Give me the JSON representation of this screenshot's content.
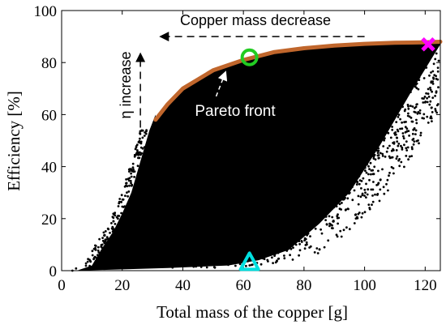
{
  "chart_data": {
    "type": "scatter",
    "title": "",
    "xlabel": "Total mass of the copper [g]",
    "ylabel": "Efficiency [%]",
    "xlim": [
      0,
      125
    ],
    "ylim": [
      0,
      100
    ],
    "xticks": [
      0,
      20,
      40,
      60,
      80,
      100,
      120
    ],
    "yticks": [
      0,
      20,
      40,
      60,
      80,
      100
    ],
    "grid": false,
    "point_color": "#000000",
    "cloud_left_boundary": [
      [
        5,
        0
      ],
      [
        10,
        2
      ],
      [
        13,
        8
      ],
      [
        17,
        15
      ],
      [
        20,
        22
      ],
      [
        23,
        30
      ],
      [
        26,
        42
      ],
      [
        29,
        54
      ],
      [
        31,
        60
      ]
    ],
    "cloud_right_boundary": [
      [
        35,
        1
      ],
      [
        55,
        2
      ],
      [
        65,
        4
      ],
      [
        75,
        8
      ],
      [
        85,
        18
      ],
      [
        95,
        30
      ],
      [
        105,
        48
      ],
      [
        115,
        68
      ],
      [
        125,
        87
      ]
    ],
    "pareto_front": {
      "label": "Pareto front",
      "color": "#c0662c",
      "points": [
        [
          31,
          58
        ],
        [
          35,
          64
        ],
        [
          40,
          70
        ],
        [
          50,
          77
        ],
        [
          60,
          81
        ],
        [
          70,
          84
        ],
        [
          80,
          85.5
        ],
        [
          90,
          86.5
        ],
        [
          100,
          87.2
        ],
        [
          110,
          87.6
        ],
        [
          120,
          87.8
        ],
        [
          125,
          88
        ]
      ]
    },
    "markers": [
      {
        "shape": "circle",
        "x": 62,
        "y": 82,
        "color": "#22cc22"
      },
      {
        "shape": "cross",
        "x": 121,
        "y": 87,
        "color": "#ff00ff"
      },
      {
        "shape": "triangle",
        "x": 62,
        "y": 3,
        "color": "#00e0e0"
      }
    ],
    "annotations": [
      {
        "text": "Copper mass decrease",
        "arrow_from": [
          100,
          90
        ],
        "arrow_to": [
          33,
          90
        ]
      },
      {
        "text": "η increase",
        "arrow_from": [
          26,
          55
        ],
        "arrow_to": [
          26,
          83
        ]
      },
      {
        "text": "Pareto front",
        "arrow_from": [
          51,
          67
        ],
        "arrow_to": [
          54,
          76
        ]
      }
    ]
  }
}
